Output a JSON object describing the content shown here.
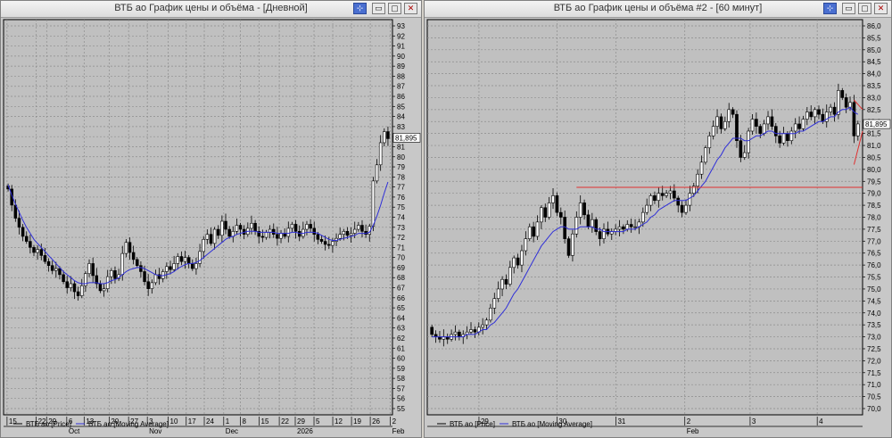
{
  "windows": [
    {
      "title": "ВТБ ао График цены и объёма - [Дневной]",
      "buttons": {
        "pin": "⊹",
        "minimize": "▭",
        "maximize": "▢",
        "close": "✕"
      }
    },
    {
      "title": "ВТБ ао График цены и объёма #2 - [60 минут]",
      "buttons": {
        "pin": "⊹",
        "minimize": "▭",
        "maximize": "▢",
        "close": "✕"
      }
    }
  ],
  "chart_data": [
    {
      "type": "candlestick",
      "timeframe": "Дневной",
      "ylim": [
        55,
        93
      ],
      "y_ticks": [
        55,
        56,
        57,
        58,
        59,
        60,
        61,
        62,
        63,
        64,
        65,
        66,
        67,
        68,
        69,
        70,
        71,
        72,
        73,
        74,
        75,
        76,
        77,
        78,
        79,
        80,
        81,
        82,
        83,
        84,
        85,
        86,
        87,
        88,
        89,
        90,
        91,
        92,
        93
      ],
      "x_ticks": [
        "15",
        "22",
        "29",
        "6",
        "13",
        "20",
        "27",
        "3",
        "10",
        "17",
        "24",
        "1",
        "8",
        "15",
        "22",
        "29",
        "5",
        "12",
        "19",
        "26",
        "2"
      ],
      "x_month_labels": [
        {
          "label": "Oct",
          "tick_index": 3
        },
        {
          "label": "Nov",
          "tick_index": 7
        },
        {
          "label": "Dec",
          "tick_index": 11
        },
        {
          "label": "2026",
          "tick_index": 15
        },
        {
          "label": "Feb",
          "tick_index": 20
        }
      ],
      "last_price": "81,895",
      "series": [
        {
          "name": "ВТБ ао [Price]",
          "color": "#000000"
        },
        {
          "name": "ВТБ ао [Moving Average]",
          "color": "#2f2fd8"
        }
      ],
      "close": [
        76.8,
        75.2,
        73.9,
        73.0,
        72.1,
        71.6,
        71.0,
        70.5,
        70.8,
        70.2,
        69.6,
        69.2,
        68.7,
        68.9,
        68.3,
        67.6,
        67.0,
        67.4,
        66.6,
        66.2,
        67.2,
        68.4,
        69.4,
        68.2,
        67.4,
        66.7,
        66.9,
        68.1,
        68.7,
        67.9,
        68.3,
        70.4,
        71.5,
        70.5,
        69.8,
        69.2,
        68.6,
        67.6,
        66.9,
        67.5,
        68.3,
        67.9,
        68.6,
        69.1,
        68.8,
        69.4,
        70.1,
        69.6,
        70.0,
        69.4,
        68.9,
        69.4,
        70.6,
        71.8,
        72.3,
        71.4,
        72.8,
        72.2,
        73.6,
        72.8,
        72.1,
        72.6,
        73.2,
        72.8,
        72.3,
        72.9,
        73.4,
        72.6,
        72.1,
        72.0,
        72.5,
        72.8,
        72.3,
        71.9,
        72.4,
        72.1,
        72.9,
        73.3,
        72.6,
        72.1,
        72.8,
        73.3,
        72.9,
        72.3,
        71.8,
        71.6,
        71.3,
        71.2,
        71.6,
        71.9,
        72.3,
        72.6,
        72.2,
        72.4,
        72.8,
        73.2,
        72.6,
        72.3,
        73.1,
        77.6,
        79.2,
        81.4,
        82.5,
        81.8
      ],
      "moving_average": [
        77.2,
        76.2,
        75.3,
        74.5,
        73.7,
        73.0,
        72.4,
        71.8,
        71.4,
        71.0,
        70.6,
        70.2,
        69.8,
        69.4,
        69.0,
        68.6,
        68.3,
        68.0,
        67.7,
        67.5,
        67.4,
        67.4,
        67.5,
        67.5,
        67.5,
        67.4,
        67.4,
        67.5,
        67.7,
        67.8,
        68.0,
        68.3,
        68.6,
        68.8,
        68.9,
        69.0,
        69.0,
        68.9,
        68.7,
        68.5,
        68.3,
        68.2,
        68.2,
        68.3,
        68.4,
        68.6,
        68.9,
        69.1,
        69.3,
        69.4,
        69.4,
        69.5,
        69.7,
        70.0,
        70.3,
        70.6,
        70.9,
        71.2,
        71.5,
        71.8,
        72.0,
        72.1,
        72.3,
        72.4,
        72.5,
        72.6,
        72.6,
        72.6,
        72.5,
        72.5,
        72.5,
        72.5,
        72.5,
        72.4,
        72.4,
        72.4,
        72.4,
        72.5,
        72.5,
        72.4,
        72.4,
        72.5,
        72.5,
        72.5,
        72.4,
        72.2,
        72.0,
        71.8,
        71.7,
        71.7,
        71.8,
        71.9,
        72.0,
        72.1,
        72.2,
        72.4,
        72.4,
        72.4,
        72.5,
        73.2,
        74.1,
        75.2,
        76.4,
        77.5
      ]
    },
    {
      "type": "candlestick",
      "timeframe": "60 минут",
      "ylim": [
        70.0,
        86.0
      ],
      "y_ticks": [
        "70,0",
        "70,5",
        "71,0",
        "71,5",
        "72,0",
        "72,5",
        "73,0",
        "73,5",
        "74,0",
        "74,5",
        "75,0",
        "75,5",
        "76,0",
        "76,5",
        "77,0",
        "77,5",
        "78,0",
        "78,5",
        "79,0",
        "79,5",
        "80,0",
        "80,5",
        "81,0",
        "81,5",
        "82,0",
        "82,5",
        "83,0",
        "83,5",
        "84,0",
        "84,5",
        "85,0",
        "85,5",
        "86,0"
      ],
      "x_ticks": [
        "29",
        "30",
        "31",
        "2",
        "3",
        "4"
      ],
      "x_month_labels": [
        {
          "label": "Feb",
          "tick_index": 3
        }
      ],
      "last_price": "81,895",
      "series": [
        {
          "name": "ВТБ ао [Price]",
          "color": "#000000"
        },
        {
          "name": "ВТБ ао [Moving Average]",
          "color": "#2f2fd8"
        }
      ],
      "trend_lines": [
        {
          "color": "#e03030",
          "from": {
            "bar": 37,
            "price": 79.25
          },
          "to": {
            "bar": 143,
            "price": 79.25
          }
        },
        {
          "color": "#e03030",
          "from": {
            "bar": 108,
            "price": 82.9
          },
          "to": {
            "bar": 139,
            "price": 82.5
          }
        },
        {
          "color": "#e03030",
          "from": {
            "bar": 108,
            "price": 80.2
          },
          "to": {
            "bar": 135,
            "price": 81.6
          }
        }
      ],
      "close": [
        73.1,
        73.0,
        72.9,
        73.0,
        72.9,
        73.1,
        73.2,
        73.0,
        73.1,
        73.2,
        73.3,
        73.2,
        73.4,
        73.5,
        73.7,
        74.2,
        74.6,
        75.0,
        75.4,
        75.2,
        75.9,
        76.3,
        76.0,
        76.6,
        77.1,
        77.6,
        77.2,
        77.8,
        78.4,
        78.0,
        78.6,
        78.9,
        78.2,
        78.0,
        77.1,
        76.4,
        77.3,
        78.0,
        78.6,
        78.1,
        77.6,
        77.9,
        77.4,
        77.1,
        77.5,
        77.3,
        77.4,
        77.5,
        77.6,
        77.5,
        77.7,
        77.6,
        77.6,
        77.8,
        78.2,
        78.5,
        78.9,
        78.7,
        79.0,
        78.9,
        79.0,
        79.1,
        78.8,
        78.5,
        78.2,
        78.5,
        79.0,
        79.3,
        79.8,
        80.3,
        80.9,
        81.4,
        81.8,
        82.2,
        81.7,
        82.0,
        82.5,
        82.3,
        81.2,
        80.5,
        80.7,
        81.6,
        82.1,
        81.8,
        81.5,
        81.9,
        82.2,
        81.8,
        81.4,
        81.1,
        81.5,
        81.2,
        81.6,
        81.9,
        81.7,
        82.1,
        82.4,
        82.2,
        82.5,
        82.3,
        82.0,
        82.4,
        82.6,
        82.3,
        83.3,
        83.0,
        82.6,
        82.8,
        81.4,
        81.9
      ],
      "moving_average": [
        73.0,
        73.0,
        73.0,
        73.0,
        73.0,
        73.0,
        73.0,
        73.0,
        73.0,
        73.1,
        73.1,
        73.1,
        73.2,
        73.3,
        73.3,
        73.5,
        73.6,
        73.8,
        74.0,
        74.2,
        74.5,
        74.8,
        75.0,
        75.3,
        75.6,
        75.9,
        76.2,
        76.5,
        76.8,
        77.0,
        77.2,
        77.4,
        77.5,
        77.6,
        77.6,
        77.5,
        77.5,
        77.5,
        77.6,
        77.6,
        77.6,
        77.6,
        77.5,
        77.5,
        77.4,
        77.4,
        77.4,
        77.4,
        77.4,
        77.4,
        77.5,
        77.5,
        77.5,
        77.6,
        77.7,
        77.8,
        78.0,
        78.1,
        78.3,
        78.4,
        78.5,
        78.6,
        78.7,
        78.7,
        78.7,
        78.7,
        78.8,
        78.9,
        79.1,
        79.3,
        79.5,
        79.8,
        80.1,
        80.4,
        80.6,
        80.9,
        81.1,
        81.3,
        81.3,
        81.3,
        81.2,
        81.2,
        81.3,
        81.4,
        81.4,
        81.5,
        81.6,
        81.6,
        81.5,
        81.5,
        81.5,
        81.5,
        81.5,
        81.5,
        81.6,
        81.6,
        81.7,
        81.8,
        81.9,
        82.0,
        82.0,
        82.1,
        82.2,
        82.2,
        82.4,
        82.5,
        82.5,
        82.6,
        82.4,
        82.3
      ]
    }
  ]
}
